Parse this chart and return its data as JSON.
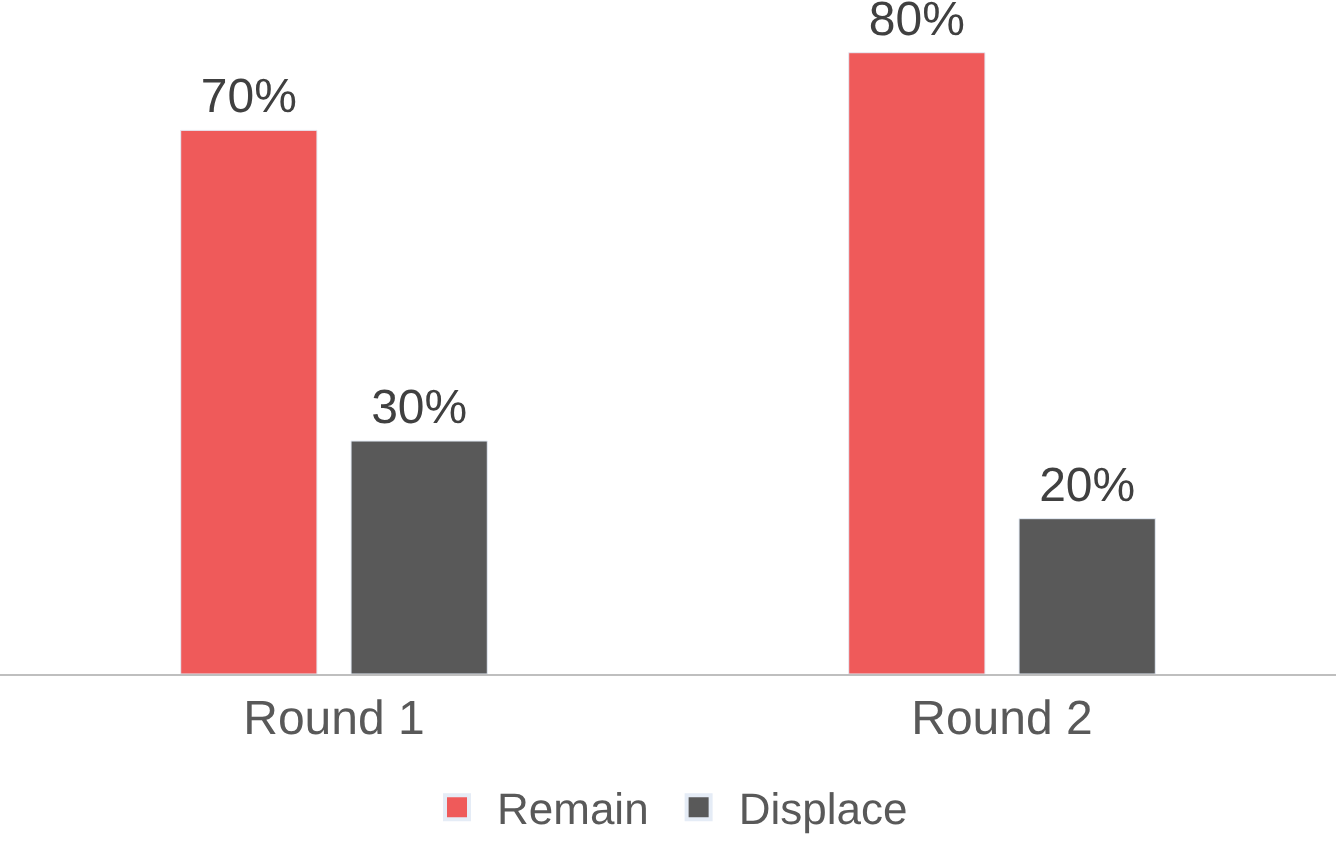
{
  "chart_data": {
    "type": "bar",
    "categories": [
      "Round 1",
      "Round 2"
    ],
    "series": [
      {
        "name": "Remain",
        "color": "#ef5a5a",
        "values": [
          70,
          80
        ],
        "value_labels": [
          "70%",
          "80%"
        ]
      },
      {
        "name": "Displace",
        "color": "#595959",
        "values": [
          30,
          20
        ],
        "value_labels": [
          "30%",
          "20%"
        ]
      }
    ],
    "legend": "bottom"
  }
}
